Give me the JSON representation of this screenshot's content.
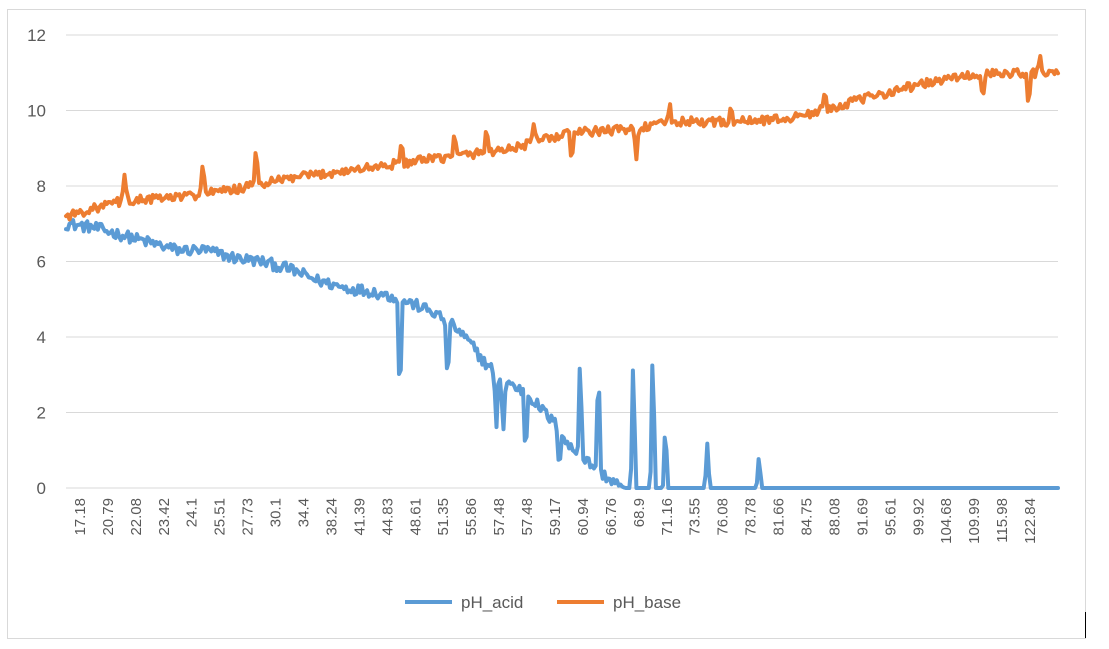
{
  "chart_data": {
    "type": "line",
    "title": "",
    "xlabel": "",
    "ylabel": "",
    "ylim": [
      0,
      12
    ],
    "yticks": [
      0,
      2,
      4,
      6,
      8,
      10,
      12
    ],
    "grid": true,
    "legend_position": "bottom",
    "x_tick_labels": [
      "17.18",
      "20.79",
      "22.08",
      "23.42",
      "24.1",
      "25.51",
      "27.73",
      "30.1",
      "34.4",
      "38.24",
      "41.39",
      "44.83",
      "48.61",
      "51.35",
      "55.86",
      "57.48",
      "57.48",
      "59.17",
      "60.94",
      "66.76",
      "68.9",
      "71.16",
      "73.55",
      "76.08",
      "78.78",
      "81.66",
      "84.75",
      "88.08",
      "91.69",
      "95.61",
      "99.92",
      "104.68",
      "109.99",
      "115.98",
      "122.84"
    ],
    "series": [
      {
        "name": "pH_acid",
        "color": "#5b9bd5",
        "anchors": [
          [
            0,
            7.0
          ],
          [
            2,
            6.9
          ],
          [
            4,
            6.7
          ],
          [
            6,
            6.5
          ],
          [
            8,
            6.3
          ],
          [
            10,
            6.3
          ],
          [
            12,
            6.1
          ],
          [
            14,
            6.0
          ],
          [
            16,
            5.8
          ],
          [
            18,
            5.5
          ],
          [
            20,
            5.3
          ],
          [
            22,
            5.2
          ],
          [
            24,
            5.0
          ],
          [
            26,
            4.7
          ],
          [
            27,
            4.5
          ],
          [
            28,
            4.2
          ],
          [
            29,
            3.8
          ],
          [
            30,
            3.3
          ],
          [
            31,
            3.0
          ],
          [
            32,
            2.7
          ],
          [
            33,
            2.5
          ],
          [
            34,
            2.1
          ],
          [
            35,
            1.7
          ],
          [
            36,
            1.1
          ],
          [
            37,
            0.8
          ],
          [
            38,
            0.5
          ],
          [
            39,
            0.2
          ],
          [
            40,
            0.0
          ],
          [
            47,
            0.0
          ],
          [
            71,
            0.0
          ]
        ],
        "noise": 0.15,
        "spikes": [
          [
            23.9,
            3.0,
            "down"
          ],
          [
            27.3,
            1.8,
            "down"
          ],
          [
            30.8,
            1.6,
            "down"
          ],
          [
            31.3,
            1.5,
            "down"
          ],
          [
            32.9,
            1.8,
            "down"
          ],
          [
            35.3,
            1.0,
            "down"
          ],
          [
            38.1,
            3.0,
            "up"
          ],
          [
            36.8,
            2.8,
            "up"
          ],
          [
            40.6,
            3.7,
            "up"
          ],
          [
            42.0,
            4.0,
            "up"
          ],
          [
            42.9,
            1.8,
            "up"
          ],
          [
            45.9,
            1.2,
            "up"
          ],
          [
            49.6,
            0.9,
            "up"
          ],
          [
            52.1,
            3.0,
            "down"
          ],
          [
            54.5,
            3.5,
            "down"
          ],
          [
            56.2,
            2.5,
            "down"
          ],
          [
            58.3,
            2.4,
            "down"
          ]
        ]
      },
      {
        "name": "pH_base",
        "color": "#ed7d31",
        "anchors": [
          [
            0,
            7.2
          ],
          [
            4,
            7.6
          ],
          [
            8,
            7.7
          ],
          [
            12,
            7.9
          ],
          [
            16,
            8.2
          ],
          [
            20,
            8.4
          ],
          [
            24,
            8.6
          ],
          [
            28,
            8.8
          ],
          [
            32,
            9.0
          ],
          [
            36,
            9.4
          ],
          [
            40,
            9.5
          ],
          [
            44,
            9.7
          ],
          [
            48,
            9.7
          ],
          [
            52,
            9.8
          ],
          [
            56,
            10.2
          ],
          [
            60,
            10.6
          ],
          [
            64,
            10.9
          ],
          [
            68,
            11.0
          ],
          [
            71,
            11.0
          ]
        ],
        "noise": 0.12,
        "spikes": [
          [
            4.2,
            0.7,
            "up"
          ],
          [
            9.8,
            1.0,
            "up"
          ],
          [
            13.6,
            1.1,
            "up"
          ],
          [
            24.0,
            0.6,
            "up"
          ],
          [
            27.8,
            0.6,
            "up"
          ],
          [
            30.1,
            0.7,
            "up"
          ],
          [
            33.5,
            0.7,
            "up"
          ],
          [
            36.2,
            0.8,
            "down"
          ],
          [
            40.8,
            0.9,
            "down"
          ],
          [
            43.2,
            0.6,
            "up"
          ],
          [
            47.6,
            0.5,
            "up"
          ],
          [
            54.3,
            0.5,
            "up"
          ],
          [
            65.6,
            0.7,
            "down"
          ],
          [
            68.9,
            1.0,
            "down"
          ],
          [
            69.7,
            0.4,
            "up"
          ]
        ]
      }
    ]
  }
}
